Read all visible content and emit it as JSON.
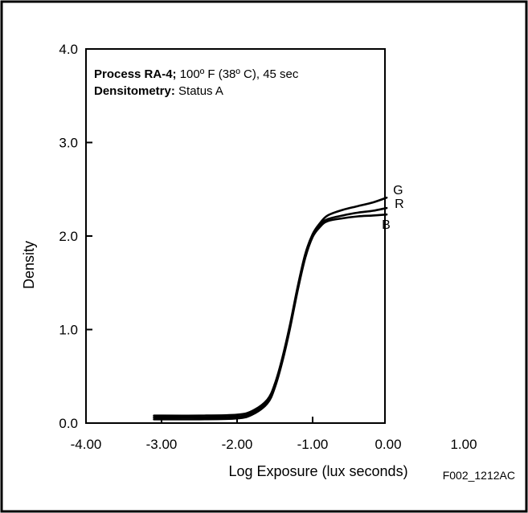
{
  "chart_data": {
    "type": "line",
    "xlabel": "Log Exposure (lux seconds)",
    "ylabel": "Density",
    "xlim": [
      -4.0,
      1.0
    ],
    "ylim": [
      0.0,
      4.0
    ],
    "x_ticks": [
      -4.0,
      -3.0,
      -2.0,
      -1.0,
      0.0,
      1.0
    ],
    "x_tick_labels": [
      "-4.00",
      "-3.00",
      "-2.00",
      "-1.00",
      "0.00",
      "1.00"
    ],
    "y_ticks": [
      0.0,
      1.0,
      2.0,
      3.0,
      4.0
    ],
    "y_tick_labels": [
      "0.0",
      "1.0",
      "2.0",
      "3.0",
      "4.0"
    ],
    "grid": false,
    "annotation": {
      "line1_bold": "Process RA-4;",
      "line1_rest": " 100º F (38º C), 45 sec",
      "line2_bold": "Densitometry:",
      "line2_rest": " Status A"
    },
    "figure_id": "F002_1212AC",
    "series": [
      {
        "name": "G",
        "x": [
          -3.1,
          -2.5,
          -2.0,
          -1.8,
          -1.6,
          -1.5,
          -1.4,
          -1.3,
          -1.2,
          -1.1,
          -1.0,
          -0.9,
          -0.8,
          -0.6,
          -0.4,
          -0.2,
          -0.02
        ],
        "y": [
          0.08,
          0.08,
          0.09,
          0.13,
          0.25,
          0.42,
          0.7,
          1.05,
          1.45,
          1.8,
          2.02,
          2.14,
          2.22,
          2.28,
          2.32,
          2.36,
          2.41
        ]
      },
      {
        "name": "R",
        "x": [
          -3.1,
          -2.5,
          -2.0,
          -1.8,
          -1.6,
          -1.5,
          -1.4,
          -1.3,
          -1.2,
          -1.1,
          -1.0,
          -0.9,
          -0.8,
          -0.6,
          -0.4,
          -0.2,
          -0.02
        ],
        "y": [
          0.06,
          0.06,
          0.07,
          0.11,
          0.23,
          0.4,
          0.68,
          1.03,
          1.43,
          1.78,
          2.0,
          2.12,
          2.18,
          2.22,
          2.25,
          2.27,
          2.3
        ]
      },
      {
        "name": "B",
        "x": [
          -3.1,
          -2.5,
          -2.0,
          -1.8,
          -1.6,
          -1.5,
          -1.4,
          -1.3,
          -1.2,
          -1.1,
          -1.0,
          -0.9,
          -0.8,
          -0.6,
          -0.4,
          -0.2,
          -0.02
        ],
        "y": [
          0.04,
          0.04,
          0.05,
          0.09,
          0.21,
          0.38,
          0.66,
          1.01,
          1.41,
          1.76,
          1.99,
          2.1,
          2.16,
          2.19,
          2.21,
          2.22,
          2.23
        ]
      }
    ]
  }
}
